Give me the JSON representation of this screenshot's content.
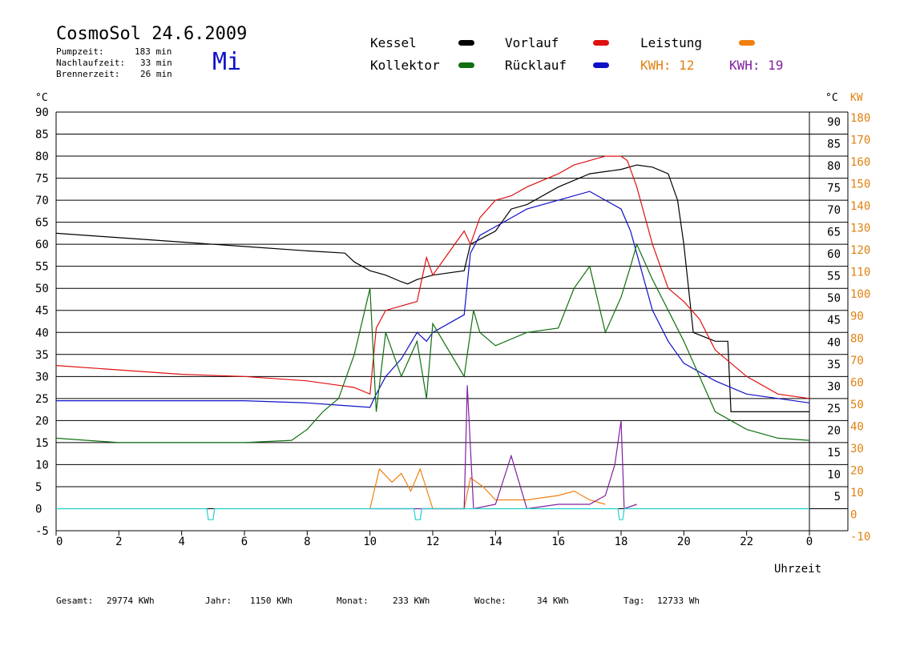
{
  "header": {
    "title": "CosmoSol 24.6.2009",
    "day": "Mi",
    "stats": [
      {
        "label": "Pumpzeit:",
        "value": "183 min"
      },
      {
        "label": "Nachlaufzeit:",
        "value": "33 min"
      },
      {
        "label": "Brennerzeit:",
        "value": "26 min"
      }
    ]
  },
  "legend": {
    "kessel": "Kessel",
    "vorlauf": "Vorlauf",
    "leistung": "Leistung",
    "kollektor": "Kollektor",
    "ruecklauf": "Rücklauf",
    "kwh1": "KWH: 12",
    "kwh2": "KWH: 19"
  },
  "footer": {
    "gesamt_label": "Gesamt:",
    "gesamt_value": "29774 KWh",
    "jahr_label": "Jahr:",
    "jahr_value": "1150 KWh",
    "monat_label": "Monat:",
    "monat_value": "233 KWh",
    "woche_label": "Woche:",
    "woche_value": "34 KWh",
    "tag_label": "Tag:",
    "tag_value": "12733 Wh"
  },
  "chart_data": {
    "type": "line",
    "xlabel": "Uhrzeit",
    "ylabel_left": "°C",
    "ylabel_right_1": "°C",
    "ylabel_right_2": "KW",
    "xlim": [
      0,
      24
    ],
    "ylim": [
      -5,
      90
    ],
    "x_ticks": [
      "0",
      "2",
      "4",
      "6",
      "8",
      "10",
      "12",
      "14",
      "16",
      "18",
      "20",
      "22",
      "0"
    ],
    "y_ticks_left": [
      "90",
      "85",
      "80",
      "75",
      "70",
      "65",
      "60",
      "55",
      "50",
      "45",
      "40",
      "35",
      "30",
      "25",
      "20",
      "15",
      "10",
      "5",
      "0",
      "-5"
    ],
    "y_ticks_right_c": [
      "90",
      "85",
      "80",
      "75",
      "70",
      "65",
      "60",
      "55",
      "50",
      "45",
      "40",
      "35",
      "30",
      "25",
      "20",
      "15",
      "10",
      "5"
    ],
    "y_ticks_right_kw": [
      "180",
      "170",
      "160",
      "150",
      "140",
      "130",
      "120",
      "110",
      "100",
      "90",
      "80",
      "70",
      "60",
      "50",
      "40",
      "30",
      "20",
      "10",
      "0",
      "-10"
    ],
    "grid": true,
    "colors": {
      "kessel": "#000000",
      "vorlauf": "#e01010",
      "ruecklauf": "#1010c8",
      "kollektor": "#107010",
      "leistung": "#f08010",
      "purple": "#8020a0",
      "cyan": "#20d0d0",
      "kw_axis": "#e08010"
    },
    "series": [
      {
        "name": "Kessel",
        "color": "#000000",
        "x": [
          0,
          2,
          4,
          6,
          8,
          9.2,
          9.5,
          10,
          10.5,
          11,
          11.2,
          11.5,
          12,
          13,
          13.2,
          14,
          14.5,
          15,
          16,
          17,
          18,
          18.5,
          19,
          19.5,
          19.8,
          20,
          20.3,
          21,
          21.4,
          21.5,
          24
        ],
        "y": [
          62.5,
          61.5,
          60.5,
          59.5,
          58.5,
          58,
          56,
          54,
          53,
          51.5,
          51,
          52,
          53,
          54,
          60,
          63,
          68,
          69,
          73,
          76,
          77,
          78,
          77.5,
          76,
          70,
          60,
          40,
          38,
          38,
          22,
          22
        ]
      },
      {
        "name": "Vorlauf",
        "color": "#e01010",
        "x": [
          0,
          2,
          4,
          6,
          8,
          9,
          9.5,
          10,
          10.2,
          10.5,
          11,
          11.5,
          11.8,
          12,
          13,
          13.2,
          13.5,
          14,
          14.5,
          15,
          16,
          16.5,
          17,
          17.5,
          18,
          18.2,
          18.5,
          19,
          19.5,
          20,
          20.5,
          21,
          22,
          23,
          24
        ],
        "y": [
          32.5,
          31.5,
          30.5,
          30,
          29,
          28,
          27.5,
          26,
          41,
          45,
          46,
          47,
          57,
          53,
          63,
          60,
          66,
          70,
          71,
          73,
          76,
          78,
          79,
          80,
          80,
          79,
          73,
          60,
          50,
          47,
          43,
          36,
          30,
          26,
          25
        ]
      },
      {
        "name": "Rücklauf",
        "color": "#1010c8",
        "x": [
          0,
          2,
          4,
          6,
          8,
          9,
          10,
          10.2,
          10.5,
          11,
          11.5,
          11.8,
          12,
          13,
          13.2,
          13.5,
          14,
          14.5,
          15,
          16,
          17,
          17.5,
          18,
          18.3,
          19,
          19.5,
          20,
          21,
          22,
          23,
          24
        ],
        "y": [
          24.5,
          24.5,
          24.5,
          24.5,
          24,
          23.5,
          23,
          26,
          30,
          34,
          40,
          38,
          40,
          44,
          58,
          62,
          64,
          66,
          68,
          70,
          72,
          70,
          68,
          63,
          45,
          38,
          33,
          29,
          26,
          25,
          24
        ]
      },
      {
        "name": "Kollektor",
        "color": "#107010",
        "x": [
          0,
          2,
          4,
          6,
          7.5,
          8,
          8.5,
          9,
          9.5,
          10,
          10.2,
          10.5,
          11,
          11.5,
          11.8,
          12,
          13,
          13.3,
          13.5,
          14,
          15,
          16,
          16.5,
          17,
          17.5,
          18,
          18.3,
          18.5,
          19,
          19.5,
          20,
          20.5,
          21,
          22,
          23,
          24
        ],
        "y": [
          16,
          15,
          15,
          15,
          15.5,
          18,
          22,
          25,
          35,
          50,
          22,
          40,
          30,
          38,
          25,
          42,
          30,
          45,
          40,
          37,
          40,
          41,
          50,
          55,
          40,
          48,
          55,
          60,
          52,
          45,
          38,
          30,
          22,
          18,
          16,
          15.5
        ]
      },
      {
        "name": "Leistung",
        "color": "#f08010",
        "x": [
          10,
          10.3,
          10.7,
          11,
          11.3,
          11.6,
          12,
          13,
          13.2,
          13.6,
          14,
          15,
          16,
          16.5,
          17,
          17.5
        ],
        "y": [
          0,
          9,
          6,
          8,
          4,
          9,
          0,
          0,
          7,
          5,
          2,
          2,
          3,
          4,
          2,
          1
        ]
      },
      {
        "name": "",
        "color": "#8020a0",
        "x": [
          10,
          11.5,
          12,
          13,
          13.1,
          13.3,
          14,
          14.5,
          15,
          16,
          17,
          17.5,
          17.8,
          18,
          18.1,
          18.5
        ],
        "y": [
          0,
          0,
          0,
          0,
          28,
          0,
          1,
          12,
          0,
          1,
          1,
          3,
          10,
          20,
          0,
          1
        ]
      },
      {
        "name": "",
        "color": "#20d0d0",
        "x": [
          0,
          4.8,
          4.85,
          5.0,
          5.05,
          11.4,
          11.45,
          11.6,
          11.65,
          17.9,
          17.95,
          18.05,
          18.1,
          24
        ],
        "y": [
          0,
          0,
          -2.5,
          -2.5,
          0,
          0,
          -2.5,
          -2.5,
          0,
          0,
          -2.5,
          -2.5,
          0,
          0
        ]
      }
    ]
  }
}
